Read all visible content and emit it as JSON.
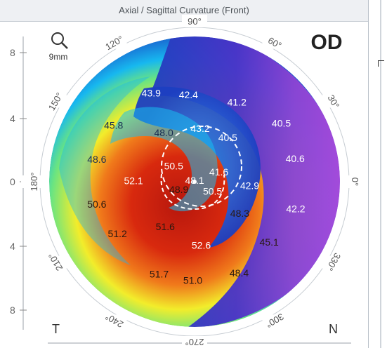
{
  "window": {
    "title": "Axial / Sagittal Curvature (Front)"
  },
  "eye": "OD",
  "scale_label": "9mm",
  "corner_labels": {
    "left": "T",
    "right": "N"
  },
  "axis_ticks": [
    "8",
    "4",
    "0",
    "4",
    "8"
  ],
  "angles": [
    {
      "text": "90°",
      "deg": 90
    },
    {
      "text": "60°",
      "deg": 60
    },
    {
      "text": "30°",
      "deg": 30
    },
    {
      "text": "0°",
      "deg": 0
    },
    {
      "text": "330°",
      "deg": 330
    },
    {
      "text": "300°",
      "deg": 300
    },
    {
      "text": "270°",
      "deg": 270
    },
    {
      "text": "240°",
      "deg": 240
    },
    {
      "text": "210°",
      "deg": 210
    },
    {
      "text": "180°",
      "deg": 180
    },
    {
      "text": "150°",
      "deg": 150
    },
    {
      "text": "120°",
      "deg": 120
    }
  ],
  "readings": [
    {
      "value": "42.4",
      "polar": [
        94,
        0.6
      ],
      "color": "#ffffff"
    },
    {
      "value": "41.2",
      "polar": [
        62,
        0.62
      ],
      "color": "#ffffff"
    },
    {
      "value": "43.9",
      "polar": [
        116,
        0.68
      ],
      "color": "#ffffff"
    },
    {
      "value": "43.2",
      "polar": [
        84,
        0.37
      ],
      "color": "#ffffff"
    },
    {
      "value": "40.5",
      "polar": [
        34,
        0.72
      ],
      "color": "#ffffff"
    },
    {
      "value": "45.8",
      "polar": [
        145,
        0.68
      ],
      "color": "#1a2d52"
    },
    {
      "value": "48.0",
      "polar": [
        122,
        0.4
      ],
      "color": "#1a2d52"
    },
    {
      "value": "40.5",
      "polar": [
        53,
        0.38
      ],
      "color": "#ffffff"
    },
    {
      "value": "48.6",
      "polar": [
        167,
        0.69
      ],
      "color": "#1a2d52"
    },
    {
      "value": "50.5",
      "polar": [
        143,
        0.18
      ],
      "color": "#ffffff"
    },
    {
      "value": "41.6",
      "polar": [
        22,
        0.18
      ],
      "color": "#ffffff"
    },
    {
      "value": "40.6",
      "polar": [
        13,
        0.71
      ],
      "color": "#ffffff"
    },
    {
      "value": "52.1",
      "polar": [
        179,
        0.42
      ],
      "color": "#ffffff"
    },
    {
      "value": "48.1",
      "polar": [
        88,
        0.01
      ],
      "color": "#ffffff"
    },
    {
      "value": "42.9",
      "polar": [
        356,
        0.38
      ],
      "color": "#ffffff"
    },
    {
      "value": "50.6",
      "polar": [
        193,
        0.69
      ],
      "color": "#2a1810"
    },
    {
      "value": "48.9",
      "polar": [
        206,
        0.12
      ],
      "color": "#2a1810"
    },
    {
      "value": "50.5",
      "polar": [
        332,
        0.14
      ],
      "color": "#ffffff"
    },
    {
      "value": "42.2",
      "polar": [
        345,
        0.72
      ],
      "color": "#ffffff"
    },
    {
      "value": "51.6",
      "polar": [
        237,
        0.37
      ],
      "color": "#2a1810"
    },
    {
      "value": "48.3",
      "polar": [
        325,
        0.38
      ],
      "color": "#2a1810"
    },
    {
      "value": "51.2",
      "polar": [
        214,
        0.64
      ],
      "color": "#2a1810"
    },
    {
      "value": "52.6",
      "polar": [
        276,
        0.44
      ],
      "color": "#ffffff"
    },
    {
      "value": "45.1",
      "polar": [
        321,
        0.66
      ],
      "color": "#2a1810"
    },
    {
      "value": "51.7",
      "polar": [
        249,
        0.68
      ],
      "color": "#2a1810"
    },
    {
      "value": "51.0",
      "polar": [
        269,
        0.68
      ],
      "color": "#2a1810"
    },
    {
      "value": "48.4",
      "polar": [
        296,
        0.7
      ],
      "color": "#2a1810"
    }
  ],
  "colors": {
    "hot": "#c7280e",
    "warm": "#ef7a1a",
    "yellow": "#f0ea2a",
    "green": "#6fe67c",
    "cyan": "#18b7ef",
    "blue": "#1f5fd8",
    "purple": "#7c3fd0",
    "magenta": "#a43ad4"
  }
}
